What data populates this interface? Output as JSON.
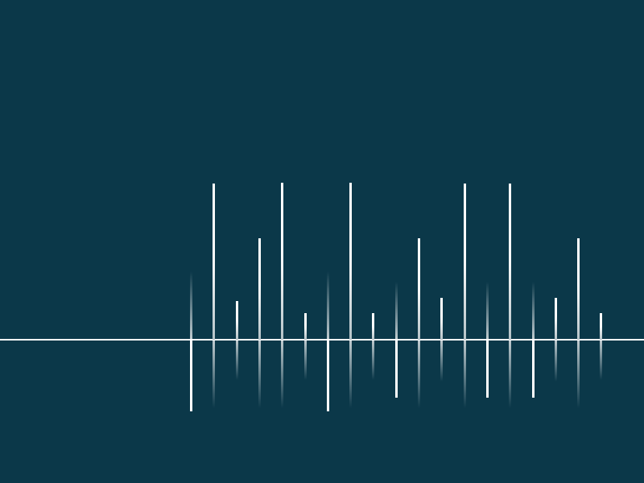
{
  "colors": {
    "background": "#0b3849",
    "line": "#ffffff"
  },
  "spikes": [
    {
      "value": -89
    },
    {
      "value": 194
    },
    {
      "value": 48
    },
    {
      "value": 126
    },
    {
      "value": 195
    },
    {
      "value": 33
    },
    {
      "value": -89
    },
    {
      "value": 195
    },
    {
      "value": 33
    },
    {
      "value": -72
    },
    {
      "value": 126
    },
    {
      "value": 52
    },
    {
      "value": 194
    },
    {
      "value": -72
    },
    {
      "value": 194
    },
    {
      "value": -72
    },
    {
      "value": 52
    },
    {
      "value": 126
    },
    {
      "value": 33
    }
  ]
}
